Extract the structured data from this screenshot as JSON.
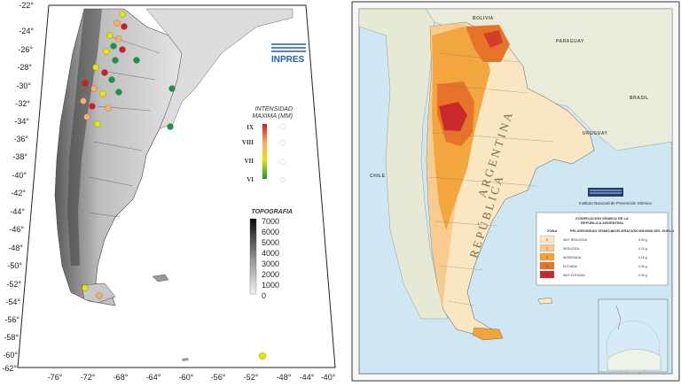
{
  "left_map": {
    "logo": "INPRES",
    "lat_ticks": [
      "-22°",
      "-24°",
      "-26°",
      "-28°",
      "-30°",
      "-32°",
      "-34°",
      "-36°",
      "-38°",
      "-40°",
      "-42°",
      "-44°",
      "-46°",
      "-48°",
      "-50°",
      "-52°",
      "-54°",
      "-56°",
      "-58°",
      "-60°",
      "-62°"
    ],
    "lon_ticks": [
      "-76°",
      "-72°",
      "-68°",
      "-64°",
      "-60°",
      "-56°",
      "-52°",
      "-48°",
      "-44°",
      "-40°"
    ],
    "intensity_legend": {
      "title": [
        "INTENSIDAD",
        "MAXIMA (MM)"
      ],
      "levels": [
        "IX",
        "VIII",
        "VII",
        "VI"
      ],
      "colors": [
        "#d7191c",
        "#fdae61",
        "#e6e600",
        "#1a9641"
      ]
    },
    "topo_legend": {
      "title": "TOPOGRAFIA",
      "values": [
        "7000",
        "6000",
        "5000",
        "4000",
        "3000",
        "2000",
        "1000",
        "0"
      ]
    }
  },
  "right_map": {
    "countries": [
      "BOLIVIA",
      "PARAGUAY",
      "BRASIL",
      "URUGUAY",
      "CHILE"
    ],
    "vertical_labels": [
      "REPÚBLICA",
      "ARGENTINA"
    ],
    "institute": "Instituto Nacional de Prevención Sísmica",
    "table": {
      "title": [
        "ZONIFICACIÓN SÍSMICA DE LA",
        "REPÚBLICA ARGENTINA"
      ],
      "headers": [
        "ZONA",
        "PELIGROSIDAD SÍSMICA",
        "ACELERACIÓN MÁXIMA DEL SUELO"
      ],
      "rows": [
        {
          "zone": "0",
          "hazard": "MUY REDUCIDA",
          "accel": "0.04 g",
          "color": "#fbe6c2"
        },
        {
          "zone": "1",
          "hazard": "REDUCIDA",
          "accel": "0.10 g",
          "color": "#f7c98a"
        },
        {
          "zone": "2",
          "hazard": "MODERADA",
          "accel": "0.18 g",
          "color": "#f2a33a"
        },
        {
          "zone": "3",
          "hazard": "ELEVADA",
          "accel": "0.25 g",
          "color": "#e7732a"
        },
        {
          "zone": "4",
          "hazard": "MUY ELEVADA",
          "accel": "0.35 g",
          "color": "#c82a2a"
        }
      ]
    }
  }
}
